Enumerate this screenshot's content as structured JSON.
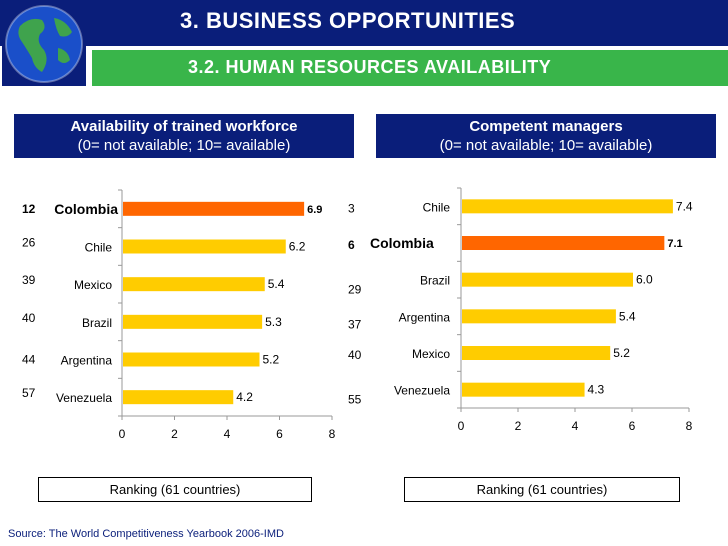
{
  "header": {
    "title": "3. BUSINESS OPPORTUNITIES",
    "subtitle": "3.2. HUMAN RESOURCES AVAILABILITY"
  },
  "colors": {
    "navy": "#0a1e7a",
    "green": "#39b54a",
    "bar": "#ffcc00",
    "highlight": "#ff6600"
  },
  "footer": {
    "source": "Source: The World Competitiveness Yearbook 2006-IMD"
  },
  "chart_data": [
    {
      "type": "bar",
      "orientation": "horizontal",
      "title": "Availability of trained workforce",
      "subtitle": "(0= not available; 10= available)",
      "categories": [
        "Colombia",
        "Chile",
        "Mexico",
        "Brazil",
        "Argentina",
        "Venezuela"
      ],
      "values": [
        6.9,
        6.2,
        5.4,
        5.3,
        5.2,
        4.2
      ],
      "value_labels": [
        "6.9",
        "6.2",
        "5.4",
        "5.3",
        "5.2",
        "4.2"
      ],
      "rankings": [
        "12",
        "26",
        "39",
        "40",
        "44",
        "57"
      ],
      "highlight": "Colombia",
      "xlim": [
        0,
        8
      ],
      "xticks": [
        "0",
        "2",
        "4",
        "6",
        "8"
      ],
      "ranking_caption": "Ranking (61 countries)"
    },
    {
      "type": "bar",
      "orientation": "horizontal",
      "title": "Competent managers",
      "subtitle": "(0= not available; 10= available)",
      "categories": [
        "Chile",
        "Colombia",
        "Brazil",
        "Argentina",
        "Mexico",
        "Venezuela"
      ],
      "values": [
        7.4,
        7.1,
        6.0,
        5.4,
        5.2,
        4.3
      ],
      "value_labels": [
        "7.4",
        "7.1",
        "6.0",
        "5.4",
        "5.2",
        "4.3"
      ],
      "rankings": [
        "3",
        "6",
        "29",
        "37",
        "40",
        "55"
      ],
      "highlight": "Colombia",
      "xlim": [
        0,
        8
      ],
      "xticks": [
        "0",
        "2",
        "4",
        "6",
        "8"
      ],
      "ranking_caption": "Ranking (61 countries)"
    }
  ]
}
